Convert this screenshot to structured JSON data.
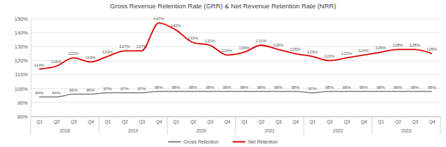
{
  "chart_data": {
    "type": "line",
    "title": "Gross Revenue Retention Rate (GRR) & Net Revenue Retention Rate (NRR)",
    "categories": [
      "Q1",
      "Q2",
      "Q3",
      "Q4",
      "Q1",
      "Q2",
      "Q3",
      "Q4",
      "Q1",
      "Q2",
      "Q3",
      "Q4",
      "Q1",
      "Q2",
      "Q3",
      "Q4",
      "Q1",
      "Q2",
      "Q3",
      "Q4",
      "Q1",
      "Q2",
      "Q3",
      "Q4"
    ],
    "group_labels": [
      "2018",
      "2019",
      "2020",
      "2021",
      "2022",
      "2023"
    ],
    "series": [
      {
        "name": "Gross Retention",
        "color": "#7f7f7f",
        "values": [
          94,
          94,
          96,
          96,
          97,
          97,
          97,
          98,
          98,
          98,
          98,
          98,
          98,
          98,
          98,
          98,
          97,
          98,
          98,
          98,
          98,
          98,
          98,
          98
        ],
        "value_labels": [
          "94%",
          "94%",
          "96%",
          "96%",
          "97%",
          "97%",
          "97%",
          "98%",
          "98%",
          "98%",
          "98%",
          "98%",
          "98%",
          "98%",
          "98%",
          "98%",
          "97%",
          "98%",
          "98%",
          "98%",
          "98%",
          "98%",
          "98%",
          "98%"
        ]
      },
      {
        "name": "Net Retention",
        "color": "#e00000",
        "values": [
          114,
          116,
          122,
          119,
          123,
          127,
          127,
          147,
          142,
          133,
          131,
          124,
          126,
          131,
          128,
          125,
          123,
          120,
          122,
          124,
          126,
          128,
          128,
          125
        ],
        "value_labels": [
          "114%",
          "116%",
          "122%",
          "119%",
          "123%",
          "127%",
          "127%",
          "147%",
          "142%",
          "133%",
          "131%",
          "124%",
          "126%",
          "131%",
          "128%",
          "125%",
          "123%",
          "120%",
          "122%",
          "124%",
          "126%",
          "128%",
          "128%",
          "125%"
        ]
      }
    ],
    "ylim": [
      80,
      150
    ],
    "yticks": [
      {
        "value": 80,
        "label": "80%"
      },
      {
        "value": 90,
        "label": "90%"
      },
      {
        "value": 100,
        "label": "100%"
      },
      {
        "value": 110,
        "label": "110%"
      },
      {
        "value": 120,
        "label": "120%"
      },
      {
        "value": 130,
        "label": "130%"
      },
      {
        "value": 140,
        "label": "140%"
      },
      {
        "value": 150,
        "label": "150%"
      }
    ],
    "grid": true,
    "legend": "bottom",
    "data_labels": true,
    "line_style": "smooth"
  }
}
